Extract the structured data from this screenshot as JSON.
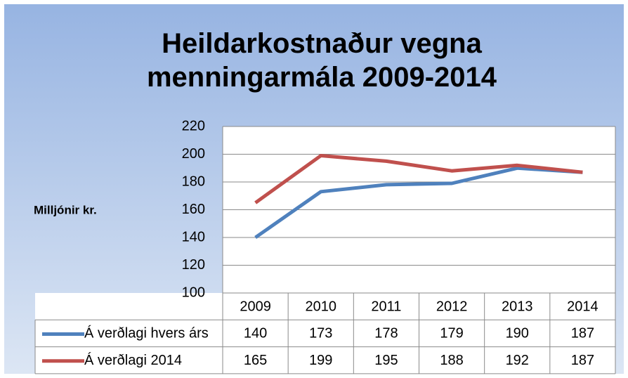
{
  "chart_data": {
    "type": "line",
    "title": "Heildarkostnaður vegna menningarmála 2009-2014",
    "y_label": "Milljónir kr.",
    "categories": [
      "2009",
      "2010",
      "2011",
      "2012",
      "2013",
      "2014"
    ],
    "series": [
      {
        "name": "Á verðlagi hvers árs",
        "color": "#4f81bd",
        "values": [
          140,
          173,
          178,
          179,
          190,
          187
        ]
      },
      {
        "name": "Á verðlagi 2014",
        "color": "#c0504d",
        "values": [
          165,
          199,
          195,
          188,
          192,
          187
        ]
      }
    ],
    "ylim": [
      100,
      220
    ],
    "yticks": [
      100,
      120,
      140,
      160,
      180,
      200,
      220
    ],
    "grid": true
  }
}
